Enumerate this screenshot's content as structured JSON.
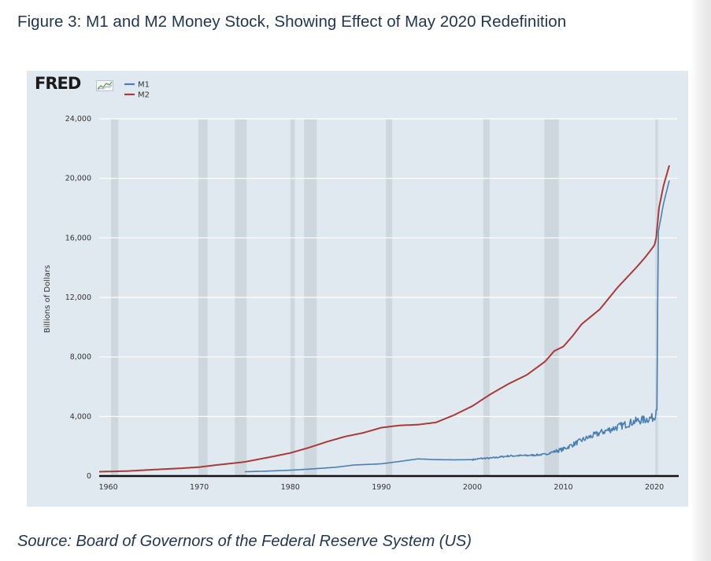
{
  "figure": {
    "title": "Figure 3: M1 and M2 Money Stock, Showing Effect of May 2020 Redefinition",
    "source": "Source: Board of Governors of the Federal Reserve System (US)"
  },
  "logo": {
    "text": "FRED"
  },
  "colors": {
    "m1": "#4a7fb3",
    "m2": "#aa3a36",
    "recession": "#cfd7de",
    "panel": "#e1e9f0"
  },
  "chart_data": {
    "type": "line",
    "ylabel": "Billions of Dollars",
    "xlim": [
      1959,
      2022.5
    ],
    "ylim": [
      0,
      24000
    ],
    "y_ticks": [
      0,
      4000,
      8000,
      12000,
      16000,
      20000,
      24000
    ],
    "y_tick_labels": [
      "0",
      "4,000",
      "8,000",
      "12,000",
      "16,000",
      "20,000",
      "24,000"
    ],
    "x_ticks": [
      1960,
      1970,
      1980,
      1990,
      2000,
      2010,
      2020
    ],
    "x_tick_labels": [
      "1960",
      "1970",
      "1980",
      "1990",
      "2000",
      "2010",
      "2020"
    ],
    "grid": "horizontal",
    "legend_position": "top-left",
    "recessions": [
      [
        1960.3,
        1961.1
      ],
      [
        1969.9,
        1970.9
      ],
      [
        1973.9,
        1975.2
      ],
      [
        1980.0,
        1980.5
      ],
      [
        1981.5,
        1982.9
      ],
      [
        1990.5,
        1991.2
      ],
      [
        2001.2,
        2001.9
      ],
      [
        2007.9,
        2009.5
      ],
      [
        2020.1,
        2020.4
      ]
    ],
    "series": [
      {
        "name": "M1",
        "color": "#4a7fb3",
        "points": [
          [
            1975,
            290
          ],
          [
            1977,
            320
          ],
          [
            1980,
            390
          ],
          [
            1982,
            460
          ],
          [
            1985,
            590
          ],
          [
            1987,
            740
          ],
          [
            1990,
            820
          ],
          [
            1992,
            980
          ],
          [
            1994,
            1150
          ],
          [
            1996,
            1100
          ],
          [
            1998,
            1090
          ],
          [
            2000,
            1100
          ],
          [
            2001,
            1180
          ],
          [
            2002,
            1200
          ],
          [
            2004,
            1350
          ],
          [
            2006,
            1380
          ],
          [
            2008,
            1450
          ],
          [
            2009,
            1650
          ],
          [
            2010,
            1800
          ],
          [
            2012,
            2400
          ],
          [
            2014,
            2900
          ],
          [
            2016,
            3300
          ],
          [
            2018,
            3700
          ],
          [
            2019,
            3800
          ],
          [
            2020.0,
            3950
          ],
          [
            2020.3,
            4800
          ],
          [
            2020.4,
            16300
          ],
          [
            2021,
            18300
          ],
          [
            2021.7,
            20000
          ]
        ]
      },
      {
        "name": "M2",
        "color": "#aa3a36",
        "points": [
          [
            1959,
            290
          ],
          [
            1962,
            330
          ],
          [
            1965,
            430
          ],
          [
            1968,
            520
          ],
          [
            1970,
            600
          ],
          [
            1972,
            750
          ],
          [
            1974,
            880
          ],
          [
            1975,
            950
          ],
          [
            1978,
            1300
          ],
          [
            1980,
            1550
          ],
          [
            1982,
            1900
          ],
          [
            1984,
            2300
          ],
          [
            1986,
            2650
          ],
          [
            1988,
            2900
          ],
          [
            1990,
            3250
          ],
          [
            1992,
            3400
          ],
          [
            1994,
            3450
          ],
          [
            1996,
            3600
          ],
          [
            1998,
            4100
          ],
          [
            2000,
            4700
          ],
          [
            2002,
            5500
          ],
          [
            2004,
            6200
          ],
          [
            2006,
            6800
          ],
          [
            2008,
            7700
          ],
          [
            2009,
            8400
          ],
          [
            2010,
            8700
          ],
          [
            2011,
            9400
          ],
          [
            2012,
            10200
          ],
          [
            2014,
            11200
          ],
          [
            2016,
            12700
          ],
          [
            2018,
            14000
          ],
          [
            2019,
            14700
          ],
          [
            2020.0,
            15500
          ],
          [
            2020.2,
            16000
          ],
          [
            2020.5,
            18000
          ],
          [
            2021,
            19500
          ],
          [
            2021.7,
            21000
          ]
        ]
      }
    ]
  }
}
